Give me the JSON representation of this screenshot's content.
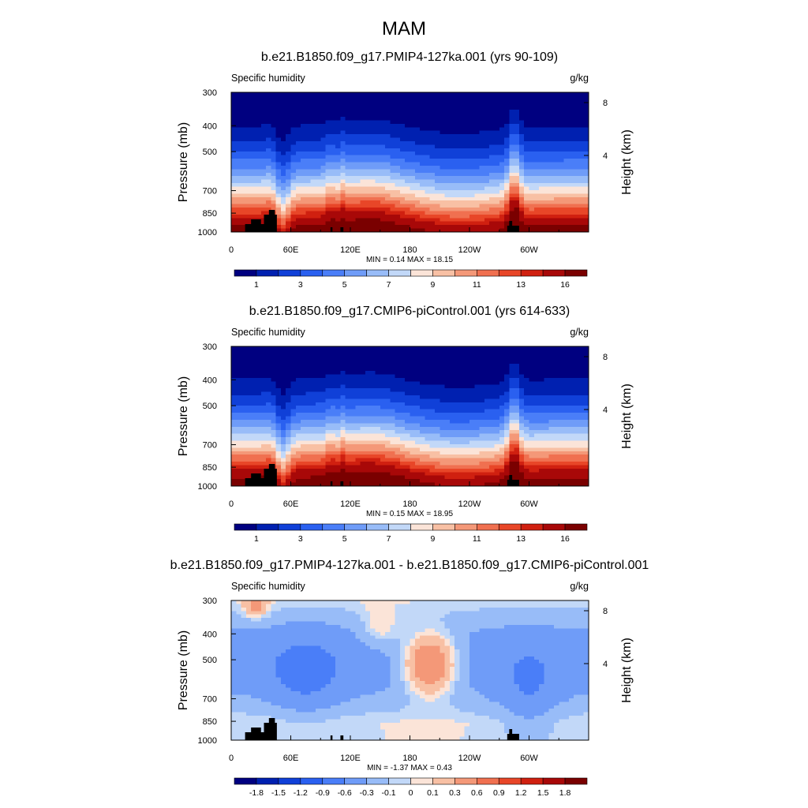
{
  "page_title": "MAM",
  "chart_data": [
    {
      "type": "heatmap",
      "title": "b.e21.B1850.f09_g17.PMIP4-127ka.001 (yrs 90-109)",
      "left_label": "Specific humidity",
      "right_label": "g/kg",
      "ylabel": "Pressure (mb)",
      "y2label": "Height (km)",
      "yticks": [
        "300",
        "400",
        "500",
        "700",
        "850",
        "1000"
      ],
      "y2ticks": [
        "8",
        "4"
      ],
      "xticks": [
        "0",
        "60E",
        "120E",
        "180",
        "120W",
        "60W"
      ],
      "stats": "MIN =   0.14  MAX =  18.15",
      "colorbar_labels": [
        "1",
        "3",
        "5",
        "7",
        "9",
        "11",
        "13",
        "16"
      ],
      "colors": [
        "#000080",
        "#0020b0",
        "#1040d8",
        "#2a60f0",
        "#4a7ef8",
        "#6f9cf8",
        "#98bcf8",
        "#c2d8f8",
        "#fbe4d8",
        "#f8c0a4",
        "#f49878",
        "#f07050",
        "#e84628",
        "#d02010",
        "#a80808",
        "#7a0000"
      ],
      "min": 0.14,
      "max": 18.15
    },
    {
      "type": "heatmap",
      "title": "b.e21.B1850.f09_g17.CMIP6-piControl.001 (yrs 614-633)",
      "left_label": "Specific humidity",
      "right_label": "g/kg",
      "ylabel": "Pressure (mb)",
      "y2label": "Height (km)",
      "yticks": [
        "300",
        "400",
        "500",
        "700",
        "850",
        "1000"
      ],
      "y2ticks": [
        "8",
        "4"
      ],
      "xticks": [
        "0",
        "60E",
        "120E",
        "180",
        "120W",
        "60W"
      ],
      "stats": "MIN =   0.15  MAX =  18.95",
      "colorbar_labels": [
        "1",
        "3",
        "5",
        "7",
        "9",
        "11",
        "13",
        "16"
      ],
      "colors": [
        "#000080",
        "#0020b0",
        "#1040d8",
        "#2a60f0",
        "#4a7ef8",
        "#6f9cf8",
        "#98bcf8",
        "#c2d8f8",
        "#fbe4d8",
        "#f8c0a4",
        "#f49878",
        "#f07050",
        "#e84628",
        "#d02010",
        "#a80808",
        "#7a0000"
      ],
      "min": 0.15,
      "max": 18.95
    },
    {
      "type": "heatmap",
      "title": "b.e21.B1850.f09_g17.PMIP4-127ka.001 - b.e21.B1850.f09_g17.CMIP6-piControl.001",
      "left_label": "Specific humidity",
      "right_label": "g/kg",
      "ylabel": "Pressure (mb)",
      "y2label": "Height (km)",
      "yticks": [
        "300",
        "400",
        "500",
        "700",
        "850",
        "1000"
      ],
      "y2ticks": [
        "8",
        "4"
      ],
      "xticks": [
        "0",
        "60E",
        "120E",
        "180",
        "120W",
        "60W"
      ],
      "stats": "MIN =  -1.37  MAX =   0.43",
      "colorbar_labels": [
        "-1.8",
        "-1.5",
        "-1.2",
        "-0.9",
        "-0.6",
        "-0.3",
        "-0.1",
        "0",
        "0.1",
        "0.3",
        "0.6",
        "0.9",
        "1.2",
        "1.5",
        "1.8"
      ],
      "colors": [
        "#000080",
        "#0020b0",
        "#1040d8",
        "#2a60f0",
        "#4a7ef8",
        "#6f9cf8",
        "#98bcf8",
        "#c2d8f8",
        "#fbe4d8",
        "#f8c0a4",
        "#f49878",
        "#f07050",
        "#e84628",
        "#d02010",
        "#a80808",
        "#7a0000"
      ],
      "min": -1.37,
      "max": 0.43
    }
  ]
}
